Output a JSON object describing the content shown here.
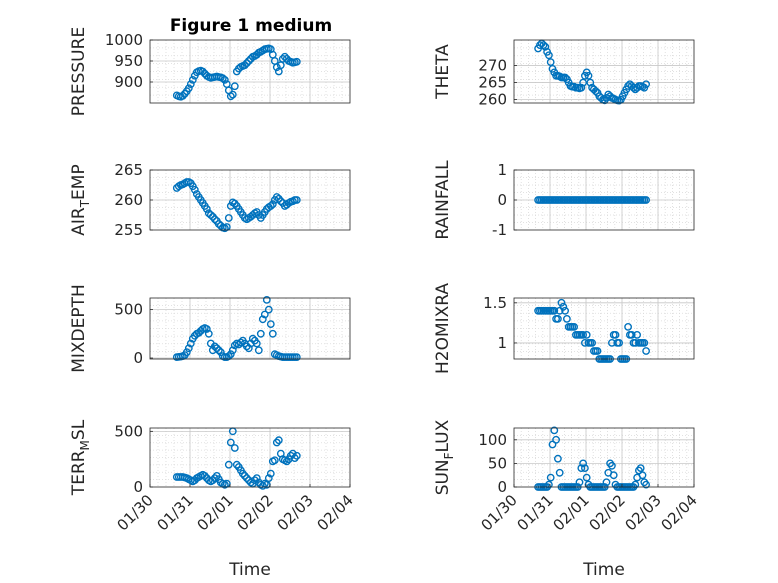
{
  "figure": {
    "title": "Figure 1 medium"
  },
  "colors": {
    "marker": "#0072bd",
    "axis": "#262626",
    "grid": "#d9d9d9"
  },
  "chart_data": [
    {
      "id": "pressure",
      "type": "scatter",
      "title": "Figure 1 medium",
      "ylabel": "PRESSURE",
      "ylabel_sub": "",
      "ylabel_rest": "",
      "xlabel": "",
      "ylim": [
        850,
        1000
      ],
      "yticks": [
        "1000",
        "950",
        "900"
      ],
      "ytick_values": [
        1000,
        950,
        900
      ],
      "xlim": [
        0,
        5
      ],
      "xticks": [],
      "grid": true,
      "x": [
        0.67,
        0.72,
        0.77,
        0.82,
        0.87,
        0.92,
        0.97,
        1.02,
        1.07,
        1.12,
        1.17,
        1.22,
        1.27,
        1.32,
        1.37,
        1.42,
        1.47,
        1.52,
        1.57,
        1.62,
        1.67,
        1.72,
        1.77,
        1.82,
        1.87,
        1.92,
        1.97,
        2.02,
        2.07,
        2.12,
        2.17,
        2.22,
        2.27,
        2.32,
        2.37,
        2.42,
        2.47,
        2.52,
        2.57,
        2.62,
        2.67,
        2.72,
        2.77,
        2.82,
        2.87,
        2.92,
        2.97,
        3.02,
        3.07,
        3.12,
        3.17,
        3.22,
        3.27,
        3.32,
        3.37,
        3.42,
        3.47,
        3.52,
        3.57,
        3.62,
        3.67
      ],
      "y": [
        868,
        866,
        865,
        867,
        872,
        878,
        885,
        895,
        905,
        915,
        923,
        926,
        927,
        925,
        920,
        915,
        912,
        910,
        911,
        912,
        913,
        912,
        911,
        909,
        905,
        895,
        880,
        866,
        870,
        890,
        925,
        932,
        936,
        938,
        940,
        945,
        950,
        955,
        960,
        962,
        965,
        970,
        972,
        975,
        978,
        979,
        980,
        978,
        965,
        950,
        935,
        925,
        940,
        955,
        960,
        955,
        950,
        948,
        946,
        947,
        948
      ]
    },
    {
      "id": "theta",
      "type": "scatter",
      "ylabel": "THETA",
      "ylabel_sub": "",
      "ylabel_rest": "",
      "xlabel": "",
      "ylim": [
        259,
        277.5
      ],
      "yticks": [
        "270",
        "265",
        "260"
      ],
      "ytick_values": [
        270,
        265,
        260
      ],
      "xlim": [
        0,
        5
      ],
      "xticks": [],
      "grid": true,
      "x": [
        0.67,
        0.72,
        0.77,
        0.82,
        0.87,
        0.92,
        0.97,
        1.02,
        1.07,
        1.12,
        1.17,
        1.22,
        1.27,
        1.32,
        1.37,
        1.42,
        1.47,
        1.52,
        1.57,
        1.62,
        1.67,
        1.72,
        1.77,
        1.82,
        1.87,
        1.92,
        1.97,
        2.02,
        2.07,
        2.12,
        2.17,
        2.22,
        2.27,
        2.32,
        2.37,
        2.42,
        2.47,
        2.52,
        2.57,
        2.62,
        2.67,
        2.72,
        2.77,
        2.82,
        2.87,
        2.92,
        2.97,
        3.02,
        3.07,
        3.12,
        3.17,
        3.22,
        3.27,
        3.32,
        3.37,
        3.42,
        3.47,
        3.52,
        3.57,
        3.62,
        3.67
      ],
      "y": [
        275,
        276,
        276.5,
        276,
        275.5,
        274,
        273,
        271,
        269,
        268,
        267,
        267,
        266.8,
        266.5,
        266.5,
        266.5,
        266,
        265,
        264,
        263.8,
        263.8,
        263.5,
        263.5,
        263.3,
        263.5,
        265,
        267,
        268,
        267,
        265,
        263.5,
        263,
        262.5,
        262,
        261,
        260.5,
        260,
        259.8,
        260.5,
        261.5,
        261,
        260.5,
        260.3,
        260,
        259.8,
        259.7,
        260,
        261,
        262,
        263,
        264,
        264.5,
        264,
        263.5,
        263,
        263.5,
        264,
        264,
        263.8,
        263.5,
        264.5
      ]
    },
    {
      "id": "air_temp",
      "type": "scatter",
      "ylabel": "AIR",
      "ylabel_sub": "T",
      "ylabel_rest": "EMP",
      "xlabel": "",
      "ylim": [
        255,
        265
      ],
      "yticks": [
        "265",
        "260",
        "255"
      ],
      "ytick_values": [
        265,
        260,
        255
      ],
      "xlim": [
        0,
        5
      ],
      "xticks": [],
      "grid": true,
      "x": [
        0.67,
        0.72,
        0.77,
        0.82,
        0.87,
        0.92,
        0.97,
        1.02,
        1.07,
        1.12,
        1.17,
        1.22,
        1.27,
        1.32,
        1.37,
        1.42,
        1.47,
        1.52,
        1.57,
        1.62,
        1.67,
        1.72,
        1.77,
        1.82,
        1.87,
        1.92,
        1.97,
        2.02,
        2.07,
        2.12,
        2.17,
        2.22,
        2.27,
        2.32,
        2.37,
        2.42,
        2.47,
        2.52,
        2.57,
        2.62,
        2.67,
        2.72,
        2.77,
        2.82,
        2.87,
        2.92,
        2.97,
        3.02,
        3.07,
        3.12,
        3.17,
        3.22,
        3.27,
        3.32,
        3.37,
        3.42,
        3.47,
        3.52,
        3.57,
        3.62,
        3.67
      ],
      "y": [
        262,
        262.3,
        262.5,
        262.6,
        262.8,
        263,
        263,
        262.8,
        262.3,
        261.7,
        261,
        260.5,
        260,
        259.5,
        259,
        258.5,
        257.8,
        257.5,
        257.2,
        256.8,
        256.5,
        256,
        255.7,
        255.4,
        255.3,
        255.5,
        257,
        259,
        259.6,
        259.4,
        259,
        258.5,
        258,
        257.5,
        257,
        256.8,
        257,
        257.2,
        257.5,
        257.8,
        258,
        257.5,
        257,
        257.5,
        258,
        258.5,
        258.8,
        259,
        259.3,
        260,
        260.5,
        260.2,
        259.8,
        259.5,
        259,
        259.2,
        259.5,
        259.7,
        259.8,
        260,
        260
      ]
    },
    {
      "id": "rainfall",
      "type": "scatter",
      "ylabel": "RAINFALL",
      "ylabel_sub": "",
      "ylabel_rest": "",
      "xlabel": "",
      "ylim": [
        -1,
        1
      ],
      "yticks": [
        "1",
        "0",
        "-1"
      ],
      "ytick_values": [
        1,
        0,
        -1
      ],
      "xlim": [
        0,
        5
      ],
      "xticks": [],
      "grid": true,
      "x": [
        0.67,
        0.72,
        0.77,
        0.82,
        0.87,
        0.92,
        0.97,
        1.02,
        1.07,
        1.12,
        1.17,
        1.22,
        1.27,
        1.32,
        1.37,
        1.42,
        1.47,
        1.52,
        1.57,
        1.62,
        1.67,
        1.72,
        1.77,
        1.82,
        1.87,
        1.92,
        1.97,
        2.02,
        2.07,
        2.12,
        2.17,
        2.22,
        2.27,
        2.32,
        2.37,
        2.42,
        2.47,
        2.52,
        2.57,
        2.62,
        2.67,
        2.72,
        2.77,
        2.82,
        2.87,
        2.92,
        2.97,
        3.02,
        3.07,
        3.12,
        3.17,
        3.22,
        3.27,
        3.32,
        3.37,
        3.42,
        3.47,
        3.52,
        3.57,
        3.62,
        3.67
      ],
      "y": [
        0,
        0,
        0,
        0,
        0,
        0,
        0,
        0,
        0,
        0,
        0,
        0,
        0,
        0,
        0,
        0,
        0,
        0,
        0,
        0,
        0,
        0,
        0,
        0,
        0,
        0,
        0,
        0,
        0,
        0,
        0,
        0,
        0,
        0,
        0,
        0,
        0,
        0,
        0,
        0,
        0,
        0,
        0,
        0,
        0,
        0,
        0,
        0,
        0,
        0,
        0,
        0,
        0,
        0,
        0,
        0,
        0,
        0,
        0,
        0,
        0
      ]
    },
    {
      "id": "mixdepth",
      "type": "scatter",
      "ylabel": "MIXDEPTH",
      "ylabel_sub": "",
      "ylabel_rest": "",
      "xlabel": "",
      "ylim": [
        -10,
        620
      ],
      "yticks": [
        "500",
        "0"
      ],
      "ytick_values": [
        500,
        0
      ],
      "xlim": [
        0,
        5
      ],
      "xticks": [],
      "grid": true,
      "x": [
        0.67,
        0.72,
        0.77,
        0.82,
        0.87,
        0.92,
        0.97,
        1.02,
        1.07,
        1.12,
        1.17,
        1.22,
        1.27,
        1.32,
        1.37,
        1.42,
        1.47,
        1.52,
        1.57,
        1.62,
        1.67,
        1.72,
        1.77,
        1.82,
        1.87,
        1.92,
        1.97,
        2.02,
        2.07,
        2.12,
        2.17,
        2.22,
        2.27,
        2.32,
        2.37,
        2.42,
        2.47,
        2.52,
        2.57,
        2.62,
        2.67,
        2.72,
        2.77,
        2.82,
        2.87,
        2.92,
        2.97,
        3.02,
        3.07,
        3.12,
        3.17,
        3.22,
        3.27,
        3.32,
        3.37,
        3.42,
        3.47,
        3.52,
        3.57,
        3.62,
        3.67
      ],
      "y": [
        10,
        12,
        15,
        20,
        30,
        60,
        100,
        150,
        200,
        230,
        250,
        260,
        280,
        300,
        310,
        300,
        250,
        150,
        80,
        120,
        100,
        80,
        60,
        20,
        10,
        10,
        20,
        40,
        80,
        130,
        150,
        140,
        160,
        180,
        150,
        120,
        100,
        150,
        200,
        180,
        150,
        80,
        250,
        400,
        450,
        600,
        500,
        350,
        250,
        40,
        30,
        20,
        15,
        10,
        10,
        10,
        10,
        10,
        10,
        10,
        10
      ]
    },
    {
      "id": "h2omixra",
      "type": "scatter",
      "ylabel": "H2OMIXRA",
      "ylabel_sub": "",
      "ylabel_rest": "",
      "xlabel": "",
      "ylim": [
        0.8,
        1.56
      ],
      "yticks": [
        "1.5",
        "1"
      ],
      "ytick_values": [
        1.5,
        1
      ],
      "xlim": [
        0,
        5
      ],
      "xticks": [],
      "grid": true,
      "x": [
        0.67,
        0.72,
        0.77,
        0.82,
        0.87,
        0.92,
        0.97,
        1.02,
        1.07,
        1.12,
        1.17,
        1.22,
        1.27,
        1.32,
        1.37,
        1.42,
        1.47,
        1.52,
        1.57,
        1.62,
        1.67,
        1.72,
        1.77,
        1.82,
        1.87,
        1.92,
        1.97,
        2.02,
        2.07,
        2.12,
        2.17,
        2.22,
        2.27,
        2.32,
        2.37,
        2.42,
        2.47,
        2.52,
        2.57,
        2.62,
        2.67,
        2.72,
        2.77,
        2.82,
        2.87,
        2.92,
        2.97,
        3.02,
        3.07,
        3.12,
        3.17,
        3.22,
        3.27,
        3.32,
        3.37,
        3.42,
        3.47,
        3.52,
        3.57,
        3.62,
        3.67
      ],
      "y": [
        1.4,
        1.4,
        1.4,
        1.4,
        1.4,
        1.4,
        1.4,
        1.4,
        1.4,
        1.4,
        1.3,
        1.3,
        1.4,
        1.5,
        1.45,
        1.4,
        1.3,
        1.2,
        1.2,
        1.2,
        1.2,
        1.1,
        1.1,
        1.1,
        1.1,
        1.1,
        1.0,
        1.1,
        1.0,
        1.0,
        1.0,
        0.9,
        0.9,
        0.9,
        0.8,
        0.8,
        0.8,
        0.8,
        0.8,
        0.8,
        0.8,
        1.0,
        1.1,
        1.1,
        1.0,
        1.0,
        0.8,
        0.8,
        0.8,
        0.8,
        1.2,
        1.1,
        1.1,
        1.0,
        1.0,
        1.1,
        1.0,
        1.0,
        1.0,
        1.0,
        0.9
      ]
    },
    {
      "id": "terr_msl",
      "type": "scatter",
      "ylabel": "TERR",
      "ylabel_sub": "M",
      "ylabel_rest": "SL",
      "xlabel": "Time",
      "ylim": [
        0,
        530
      ],
      "yticks": [
        "500",
        "0"
      ],
      "ytick_values": [
        500,
        0
      ],
      "xlim": [
        0,
        5
      ],
      "xticks": [
        "01/30",
        "01/31",
        "02/01",
        "02/02",
        "02/03",
        "02/04"
      ],
      "xtick_values": [
        0,
        1,
        2,
        3,
        4,
        5
      ],
      "grid": true,
      "x": [
        0.67,
        0.72,
        0.77,
        0.82,
        0.87,
        0.92,
        0.97,
        1.02,
        1.07,
        1.12,
        1.17,
        1.22,
        1.27,
        1.32,
        1.37,
        1.42,
        1.47,
        1.52,
        1.57,
        1.62,
        1.67,
        1.72,
        1.77,
        1.82,
        1.87,
        1.92,
        1.97,
        2.02,
        2.07,
        2.12,
        2.17,
        2.22,
        2.27,
        2.32,
        2.37,
        2.42,
        2.47,
        2.52,
        2.57,
        2.62,
        2.67,
        2.72,
        2.77,
        2.82,
        2.87,
        2.92,
        2.97,
        3.02,
        3.07,
        3.12,
        3.17,
        3.22,
        3.27,
        3.32,
        3.37,
        3.42,
        3.47,
        3.52,
        3.57,
        3.62,
        3.67
      ],
      "y": [
        90,
        90,
        90,
        90,
        85,
        80,
        70,
        60,
        50,
        60,
        80,
        90,
        100,
        110,
        100,
        80,
        60,
        50,
        60,
        80,
        100,
        70,
        40,
        30,
        20,
        30,
        200,
        400,
        500,
        350,
        200,
        180,
        150,
        120,
        100,
        80,
        60,
        40,
        30,
        60,
        80,
        40,
        20,
        10,
        30,
        20,
        80,
        120,
        230,
        240,
        400,
        420,
        300,
        250,
        240,
        230,
        250,
        280,
        300,
        260,
        280
      ]
    },
    {
      "id": "sun_flux",
      "type": "scatter",
      "ylabel": "SUN",
      "ylabel_sub": "F",
      "ylabel_rest": "LUX",
      "xlabel": "Time",
      "ylim": [
        0,
        125
      ],
      "yticks": [
        "100",
        "50",
        "0"
      ],
      "ytick_values": [
        100,
        50,
        0
      ],
      "xlim": [
        0,
        5
      ],
      "xticks": [
        "01/30",
        "01/31",
        "02/01",
        "02/02",
        "02/03",
        "02/04"
      ],
      "xtick_values": [
        0,
        1,
        2,
        3,
        4,
        5
      ],
      "grid": true,
      "x": [
        0.67,
        0.72,
        0.77,
        0.82,
        0.87,
        0.92,
        0.97,
        1.02,
        1.07,
        1.12,
        1.17,
        1.22,
        1.27,
        1.32,
        1.37,
        1.42,
        1.47,
        1.52,
        1.57,
        1.62,
        1.67,
        1.72,
        1.77,
        1.82,
        1.87,
        1.92,
        1.97,
        2.02,
        2.07,
        2.12,
        2.17,
        2.22,
        2.27,
        2.32,
        2.37,
        2.42,
        2.47,
        2.52,
        2.57,
        2.62,
        2.67,
        2.72,
        2.77,
        2.82,
        2.87,
        2.92,
        2.97,
        3.02,
        3.07,
        3.12,
        3.17,
        3.22,
        3.27,
        3.32,
        3.37,
        3.42,
        3.47,
        3.52,
        3.57,
        3.62,
        3.67
      ],
      "y": [
        0,
        0,
        0,
        0,
        0,
        0,
        5,
        20,
        90,
        120,
        100,
        60,
        30,
        0,
        0,
        0,
        0,
        0,
        0,
        0,
        0,
        0,
        0,
        10,
        40,
        50,
        40,
        20,
        5,
        0,
        0,
        0,
        0,
        0,
        0,
        0,
        0,
        0,
        10,
        30,
        50,
        45,
        25,
        5,
        0,
        0,
        0,
        0,
        0,
        0,
        0,
        0,
        0,
        0,
        5,
        20,
        35,
        40,
        25,
        10,
        5
      ]
    }
  ]
}
